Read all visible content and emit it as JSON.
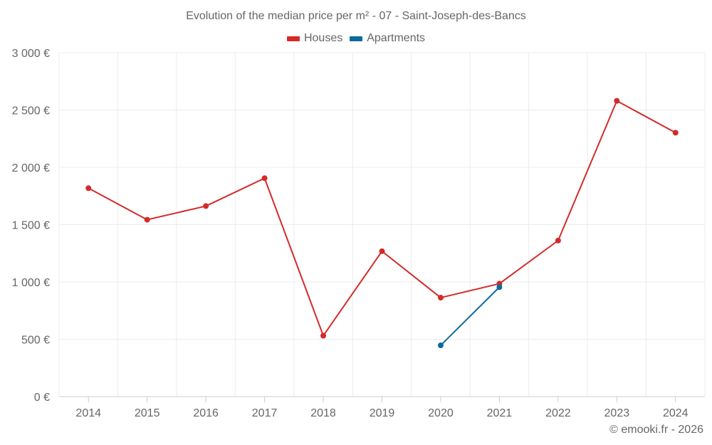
{
  "chart_data": {
    "type": "line",
    "title": "Evolution of the median price per m² - 07 - Saint-Joseph-des-Bancs",
    "categories": [
      "2014",
      "2015",
      "2016",
      "2017",
      "2018",
      "2019",
      "2020",
      "2021",
      "2022",
      "2023",
      "2024"
    ],
    "series": [
      {
        "name": "Houses",
        "color": "#d42a2a",
        "values": [
          1818,
          1543,
          1662,
          1905,
          531,
          1268,
          863,
          985,
          1361,
          2580,
          2302
        ]
      },
      {
        "name": "Apartments",
        "color": "#0d6a9c",
        "values": [
          null,
          null,
          null,
          null,
          null,
          null,
          447,
          955,
          null,
          null,
          null
        ]
      }
    ],
    "ylim": [
      0,
      3000
    ],
    "yticks": [
      0,
      500,
      1000,
      1500,
      2000,
      2500,
      3000
    ],
    "ytick_labels": [
      "0 €",
      "500 €",
      "1 000 €",
      "1 500 €",
      "2 000 €",
      "2 500 €",
      "3 000 €"
    ],
    "legend_position": "top-center",
    "grid": true
  },
  "credit": "© emooki.fr - 2026"
}
